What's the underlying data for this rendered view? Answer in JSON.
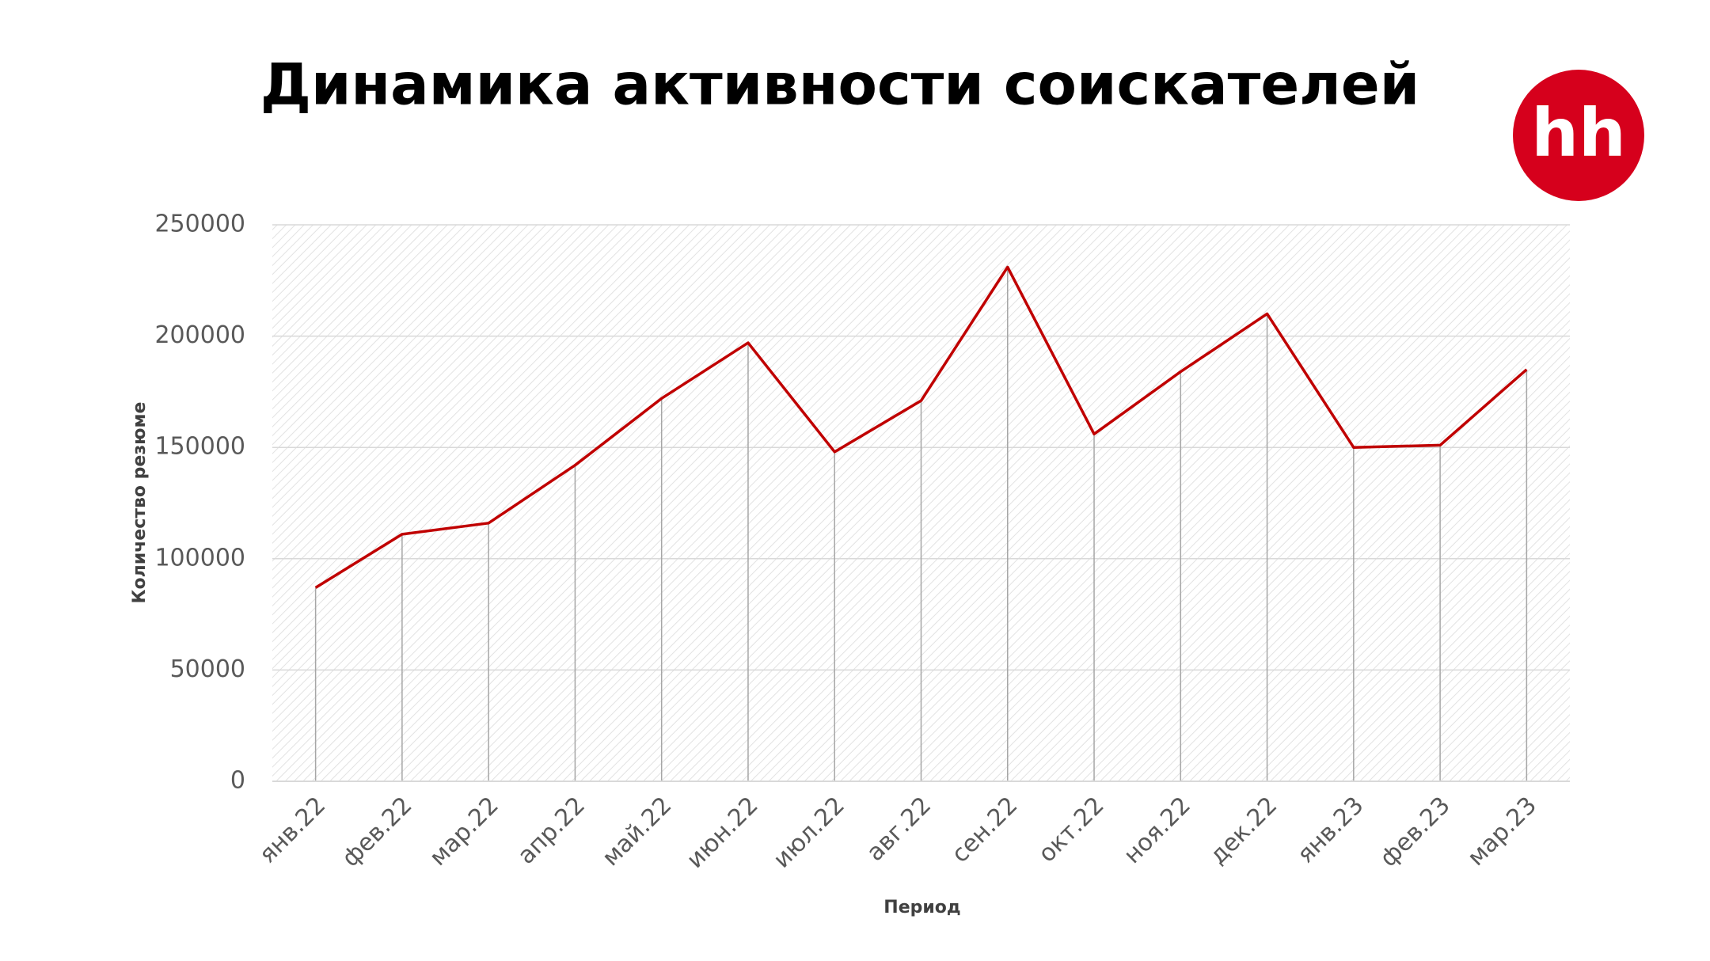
{
  "chart_data": {
    "type": "line",
    "title": "Динамика активности соискателей",
    "x_label": "Период",
    "y_label": "Количество резюме",
    "categories": [
      "янв.22",
      "фев.22",
      "мар.22",
      "апр.22",
      "май.22",
      "июн.22",
      "июл.22",
      "авг.22",
      "сен.22",
      "окт.22",
      "ноя.22",
      "дек.22",
      "янв.23",
      "фев.23",
      "мар.23"
    ],
    "series": [
      {
        "name": "Количество резюме",
        "color": "#c00000",
        "values": [
          87000,
          111000,
          116000,
          142000,
          172000,
          197000,
          148000,
          171000,
          231000,
          156000,
          184000,
          210000,
          150000,
          151000,
          185000
        ]
      }
    ],
    "ylim": [
      0,
      250000
    ],
    "yticks": [
      0,
      50000,
      100000,
      150000,
      200000,
      250000
    ],
    "grid": true,
    "drop_lines": true
  },
  "logo": "hh"
}
